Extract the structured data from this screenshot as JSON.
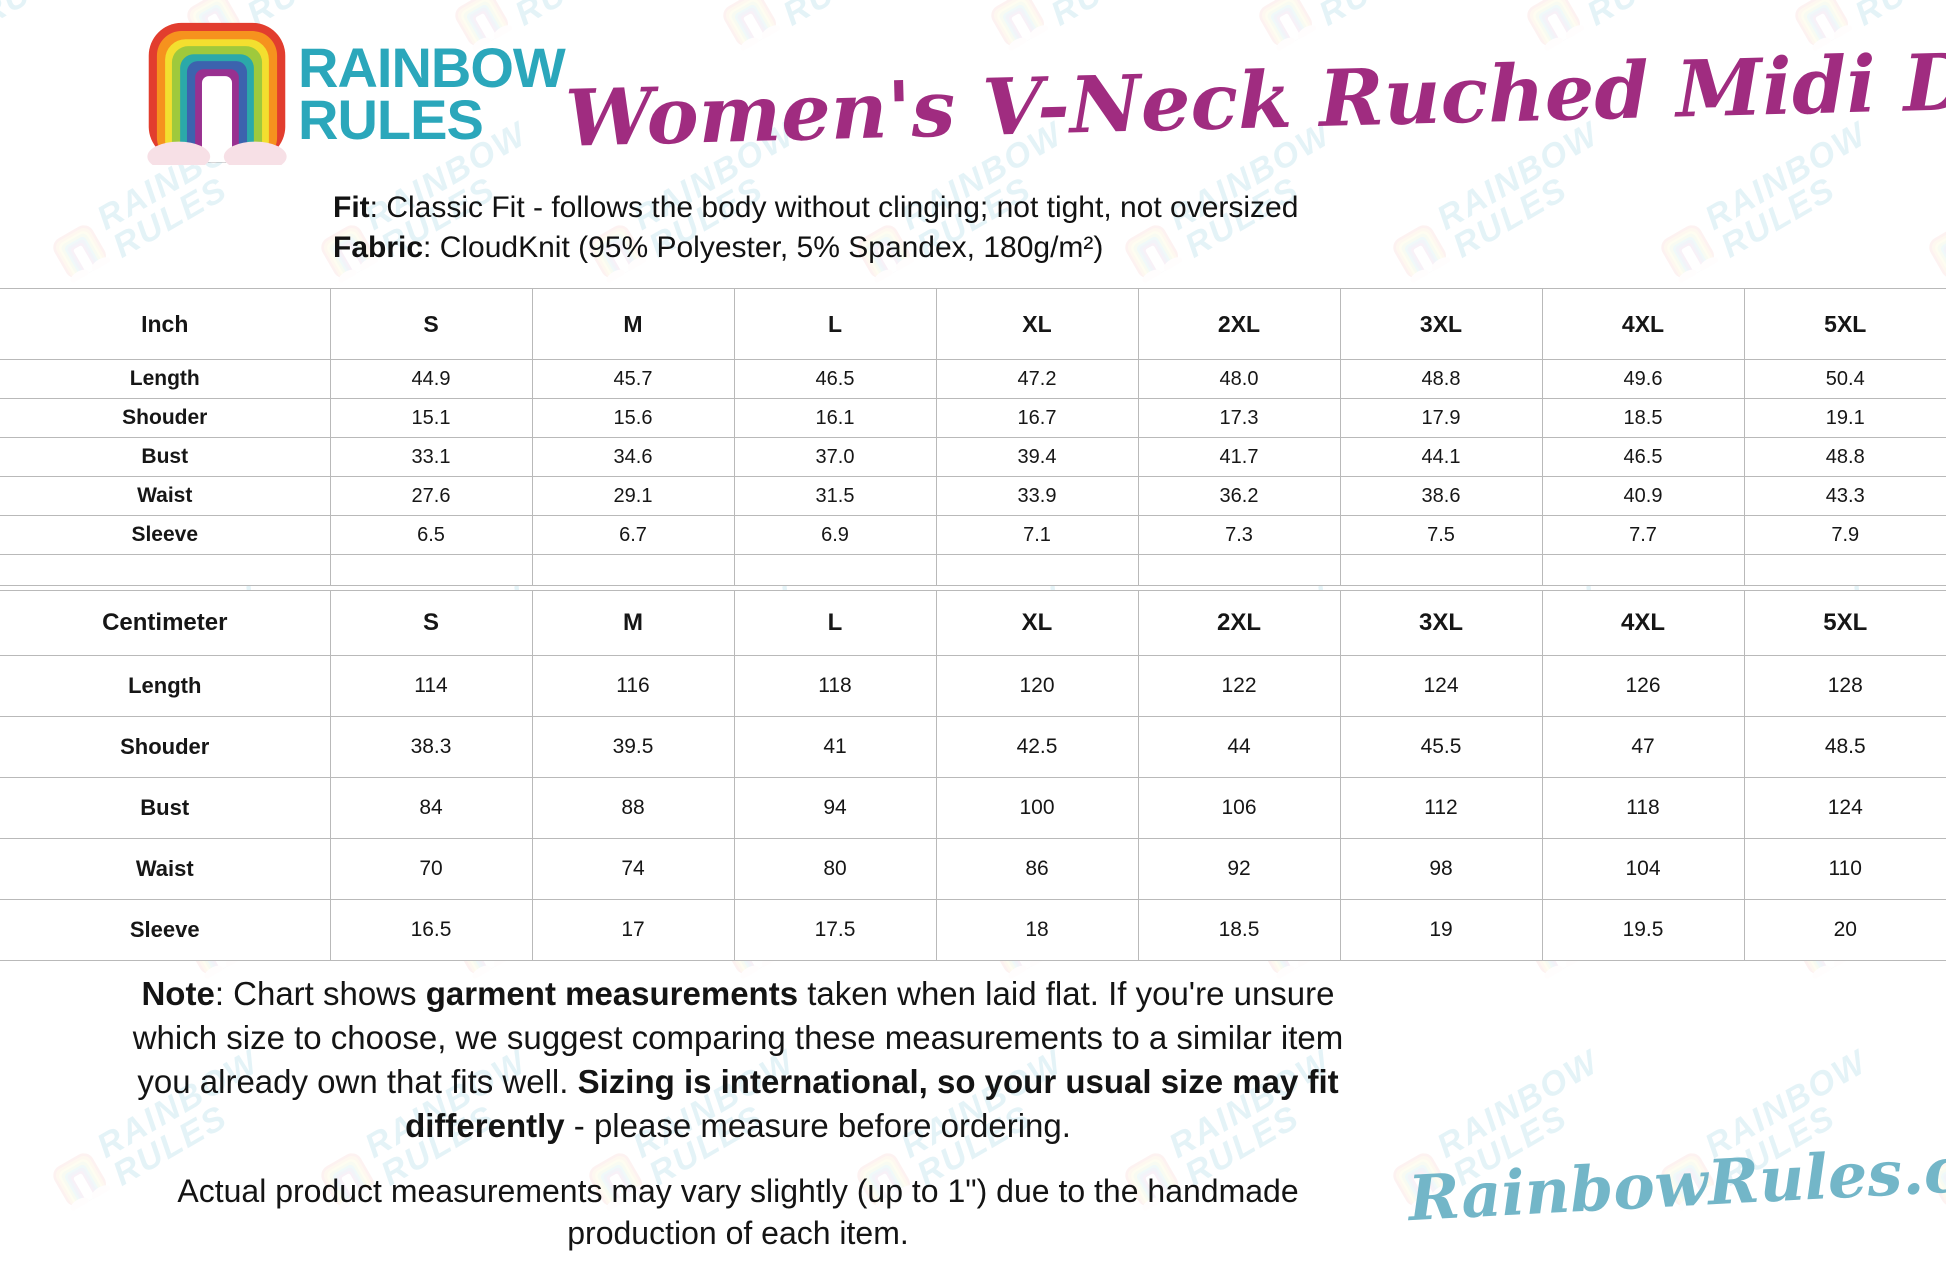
{
  "brand": {
    "logo_line1": "RAINBOW",
    "logo_line2": "RULES",
    "website": "RainbowRules.com",
    "colors": {
      "brand_teal": "#2ba7bb",
      "title_magenta": "#a02c80",
      "site_teal": "#73b6c8",
      "table_border_gray": "#b9b9b9"
    }
  },
  "header": {
    "title": "Women's V-Neck Ruched Midi Dress",
    "fit_label": "Fit",
    "fit_text": ": Classic Fit - follows the body without clinging; not tight, not oversized",
    "fabric_label": "Fabric",
    "fabric_text": ": CloudKnit (95% Polyester, 5% Spandex, 180g/m²)"
  },
  "size_charts": [
    {
      "unit": "Inch",
      "spacer_row": true,
      "sizes": [
        "S",
        "M",
        "L",
        "XL",
        "2XL",
        "3XL",
        "4XL",
        "5XL"
      ],
      "rows": [
        {
          "label": "Length",
          "values": [
            "44.9",
            "45.7",
            "46.5",
            "47.2",
            "48.0",
            "48.8",
            "49.6",
            "50.4"
          ]
        },
        {
          "label": "Shouder",
          "values": [
            "15.1",
            "15.6",
            "16.1",
            "16.7",
            "17.3",
            "17.9",
            "18.5",
            "19.1"
          ]
        },
        {
          "label": "Bust",
          "values": [
            "33.1",
            "34.6",
            "37.0",
            "39.4",
            "41.7",
            "44.1",
            "46.5",
            "48.8"
          ]
        },
        {
          "label": "Waist",
          "values": [
            "27.6",
            "29.1",
            "31.5",
            "33.9",
            "36.2",
            "38.6",
            "40.9",
            "43.3"
          ]
        },
        {
          "label": "Sleeve",
          "values": [
            "6.5",
            "6.7",
            "6.9",
            "7.1",
            "7.3",
            "7.5",
            "7.7",
            "7.9"
          ]
        }
      ]
    },
    {
      "unit": "Centimeter",
      "spacer_row": false,
      "sizes": [
        "S",
        "M",
        "L",
        "XL",
        "2XL",
        "3XL",
        "4XL",
        "5XL"
      ],
      "rows": [
        {
          "label": "Length",
          "values": [
            "114",
            "116",
            "118",
            "120",
            "122",
            "124",
            "126",
            "128"
          ]
        },
        {
          "label": "Shouder",
          "values": [
            "38.3",
            "39.5",
            "41",
            "42.5",
            "44",
            "45.5",
            "47",
            "48.5"
          ]
        },
        {
          "label": "Bust",
          "values": [
            "84",
            "88",
            "94",
            "100",
            "106",
            "112",
            "118",
            "124"
          ]
        },
        {
          "label": "Waist",
          "values": [
            "70",
            "74",
            "80",
            "86",
            "92",
            "98",
            "104",
            "110"
          ]
        },
        {
          "label": "Sleeve",
          "values": [
            "16.5",
            "17",
            "17.5",
            "18",
            "18.5",
            "19",
            "19.5",
            "20"
          ]
        }
      ]
    }
  ],
  "notes": {
    "sizing_note_segments": [
      {
        "text": "Note",
        "bold": true
      },
      {
        "text": ": Chart shows ",
        "bold": false
      },
      {
        "text": "garment measurements",
        "bold": true
      },
      {
        "text": " taken when laid flat. If you're unsure which size to choose, we suggest comparing these measurements to a similar item you already own that fits well. ",
        "bold": false
      },
      {
        "text": "Sizing is international, so your usual size may fit differently",
        "bold": true
      },
      {
        "text": " - please measure before ordering.",
        "bold": false
      }
    ],
    "variance_note": "Actual product measurements may vary slightly (up to 1\") due to the handmade production of each item."
  }
}
